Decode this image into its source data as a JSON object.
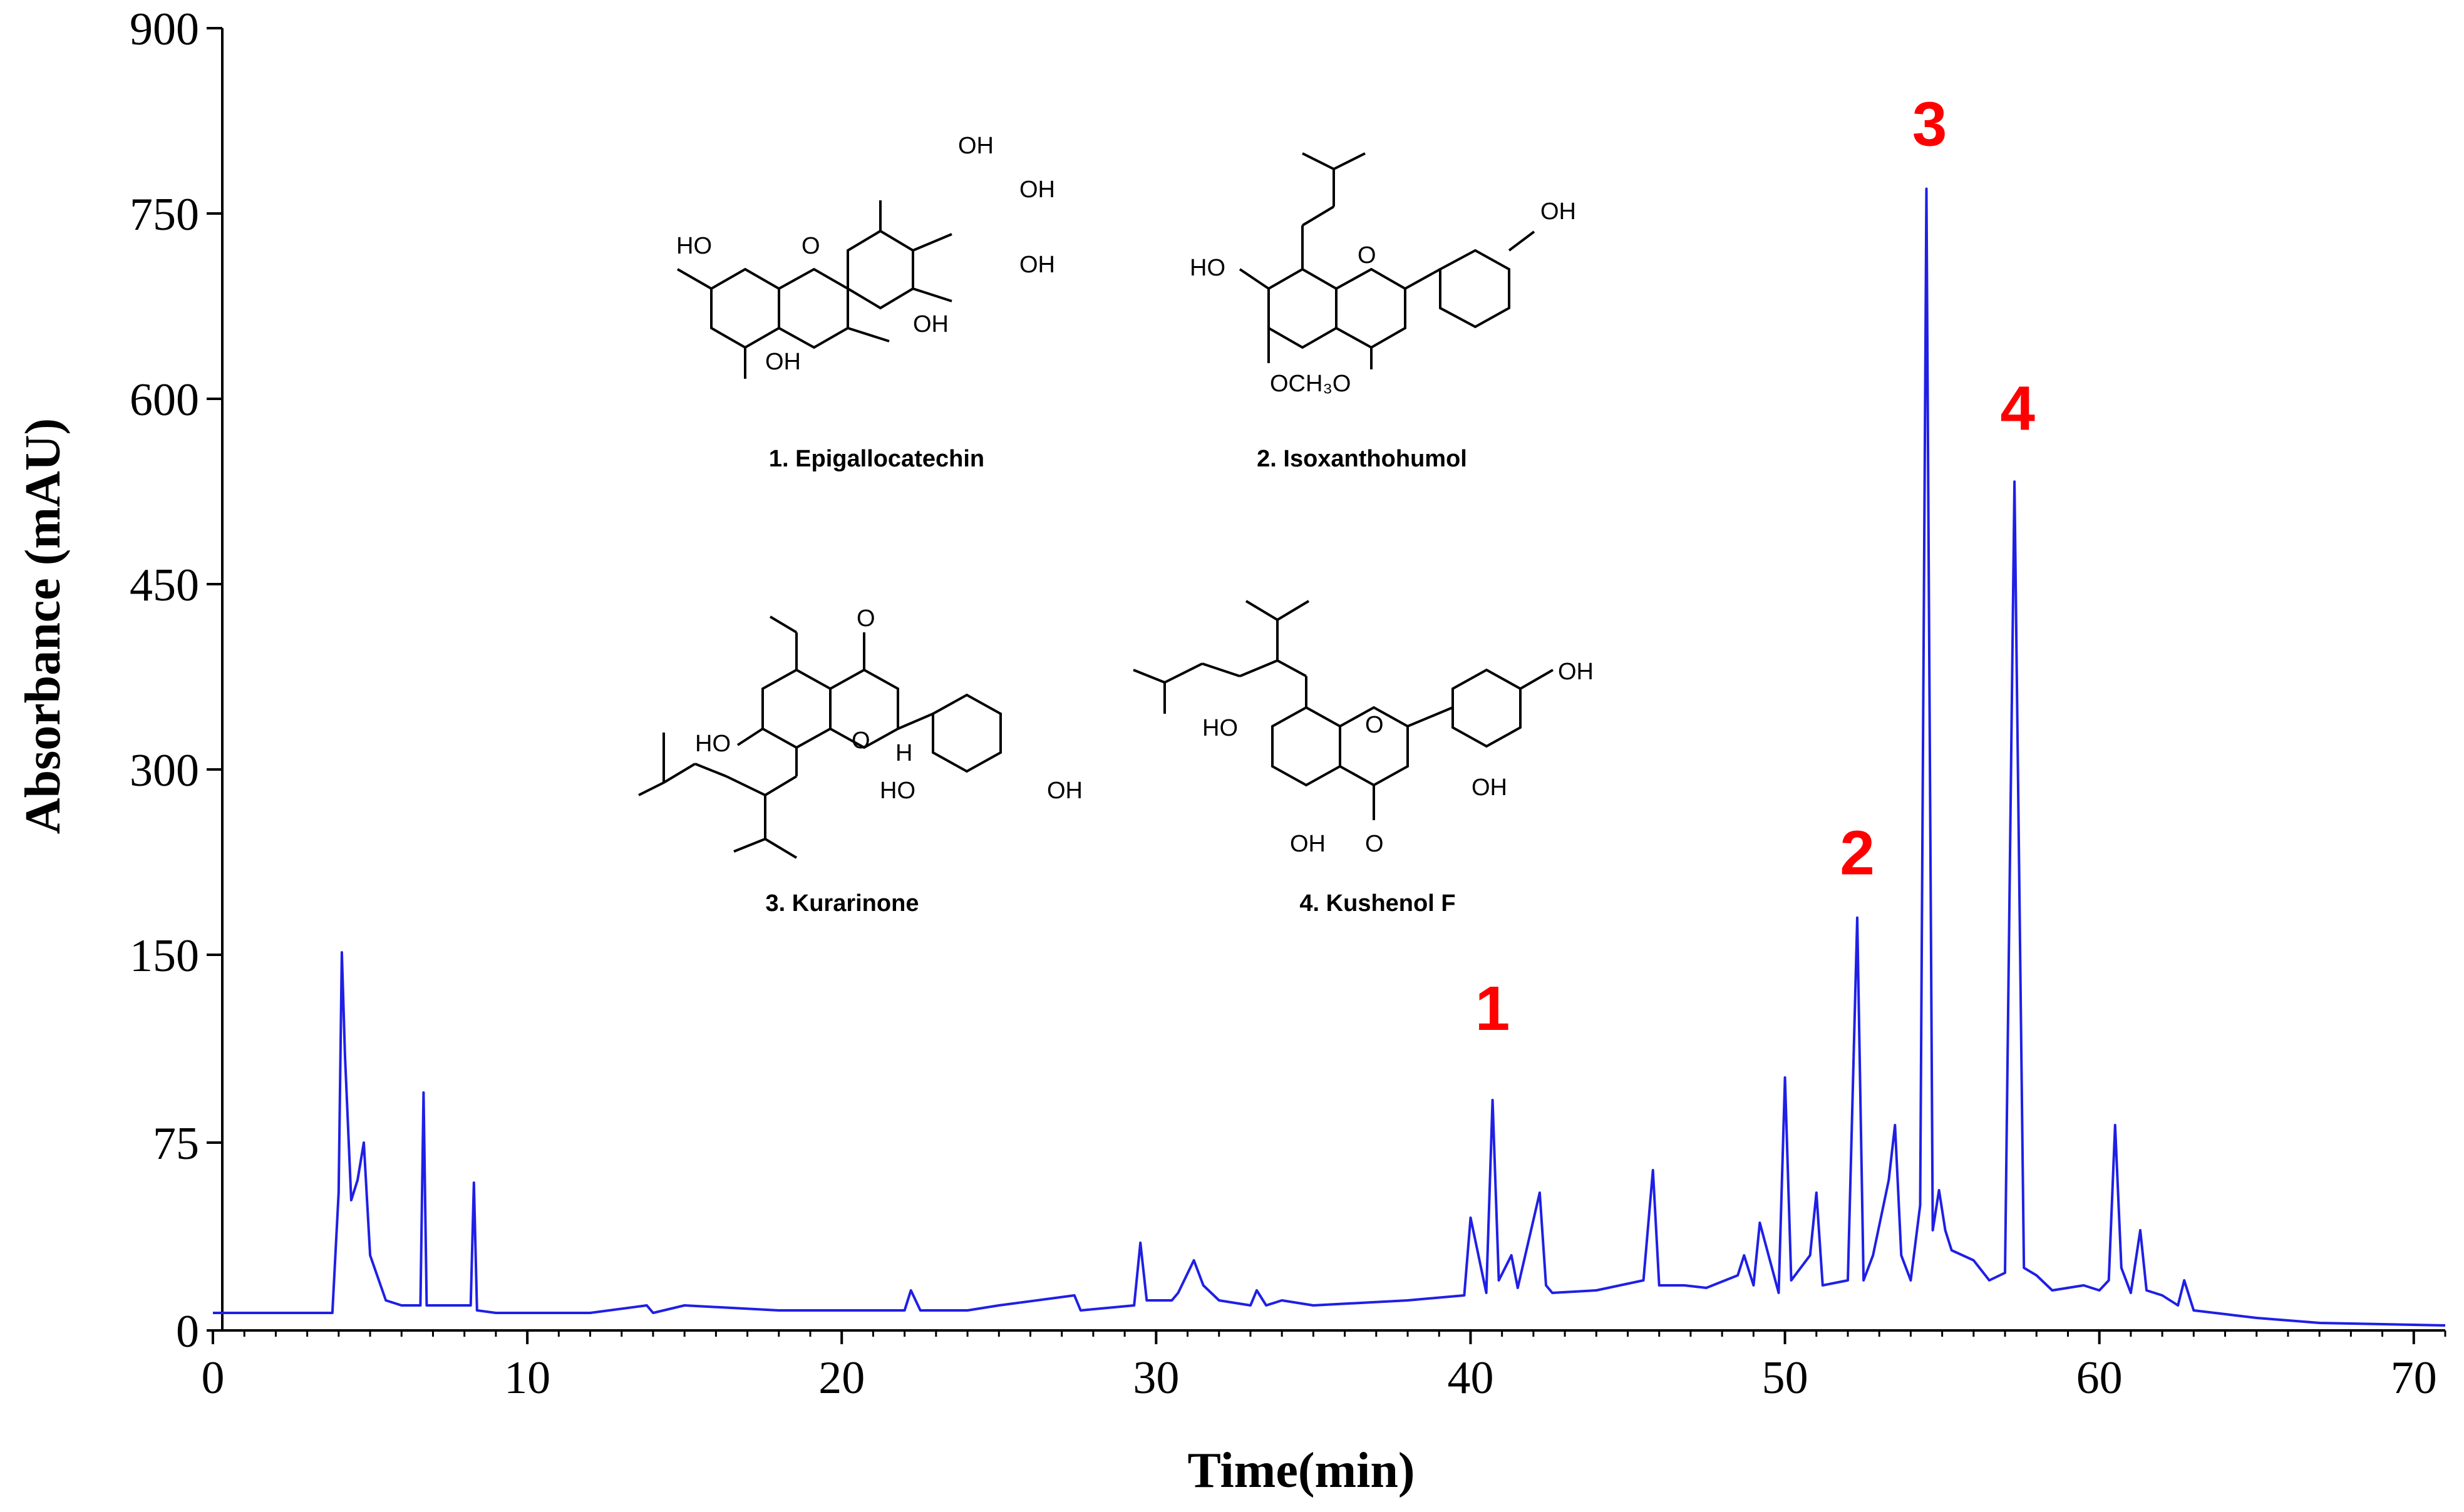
{
  "chart_data": {
    "type": "line",
    "xlabel": "Time(min)",
    "ylabel": "Absorbance (mAU)",
    "xlim": [
      0,
      71
    ],
    "ylim": [
      0,
      900
    ],
    "x_ticks": [
      0,
      10,
      20,
      30,
      40,
      50,
      60,
      70
    ],
    "y_ticks": [
      0,
      75,
      150,
      300,
      450,
      600,
      750,
      900
    ],
    "grid": false,
    "line_color": "#1f1fe6",
    "peak_label_color": "#ff0000",
    "series": [
      {
        "x": [
          0,
          3.8,
          4.0,
          4.1,
          4.2,
          4.4,
          4.6,
          4.8,
          5.0,
          5.5,
          6.0,
          6.6,
          6.7,
          6.8,
          7.5,
          8.2,
          8.3,
          8.4,
          9.0,
          12,
          13.8,
          14,
          15,
          18,
          22,
          22.2,
          22.5,
          24,
          25,
          27.4,
          27.6,
          29.3,
          29.5,
          29.7,
          30.5,
          30.7,
          31.2,
          31.5,
          32,
          33,
          33.2,
          33.5,
          34,
          35,
          38,
          39.8,
          40.0,
          40.5,
          40.7,
          40.9,
          41.3,
          41.5,
          42.2,
          42.4,
          42.6,
          44,
          45.5,
          45.8,
          46.0,
          46.8,
          47.5,
          48.5,
          48.7,
          49.0,
          49.2,
          49.8,
          50.0,
          50.2,
          50.8,
          51.0,
          51.2,
          52.0,
          52.3,
          52.5,
          52.8,
          53.3,
          53.5,
          53.7,
          54.0,
          54.3,
          54.5,
          54.7,
          54.9,
          55.1,
          55.3,
          56.0,
          56.5,
          57.0,
          57.3,
          57.6,
          58.0,
          58.5,
          59.5,
          60.0,
          60.3,
          60.5,
          60.7,
          61.0,
          61.3,
          61.5,
          62.0,
          62.5,
          62.7,
          63.0,
          65,
          67,
          71
        ],
        "y": [
          7,
          7,
          55,
          152,
          110,
          52,
          60,
          75,
          30,
          12,
          10,
          10,
          95,
          10,
          10,
          10,
          59,
          8,
          7,
          7,
          10,
          7,
          10,
          8,
          8,
          16,
          8,
          8,
          10,
          14,
          8,
          10,
          35,
          12,
          12,
          15,
          28,
          18,
          12,
          10,
          16,
          10,
          12,
          10,
          12,
          14,
          45,
          15,
          92,
          20,
          30,
          17,
          55,
          18,
          15,
          16,
          20,
          64,
          18,
          18,
          17,
          22,
          30,
          18,
          43,
          15,
          101,
          20,
          30,
          55,
          18,
          20,
          180,
          20,
          30,
          60,
          82,
          30,
          20,
          50,
          770,
          40,
          56,
          40,
          32,
          28,
          20,
          23,
          533,
          25,
          22,
          16,
          18,
          16,
          20,
          82,
          25,
          15,
          40,
          16,
          14,
          10,
          20,
          8,
          5,
          3,
          2
        ]
      }
    ],
    "peak_labels": [
      {
        "text": "1",
        "x": 40.7,
        "y": 120
      },
      {
        "text": "2",
        "x": 52.3,
        "y": 215
      },
      {
        "text": "3",
        "x": 54.6,
        "y": 805
      },
      {
        "text": "4",
        "x": 57.4,
        "y": 575
      }
    ],
    "structures": [
      {
        "caption": "1. Epigallocatechin"
      },
      {
        "caption": "2. Isoxanthohumol"
      },
      {
        "caption": "3. Kurarinone"
      },
      {
        "caption": "4. Kushenol F"
      }
    ],
    "atom_labels": {
      "oh": "OH",
      "ho": "HO",
      "o": "O",
      "h": "H",
      "och3": "OCH₃O"
    }
  }
}
